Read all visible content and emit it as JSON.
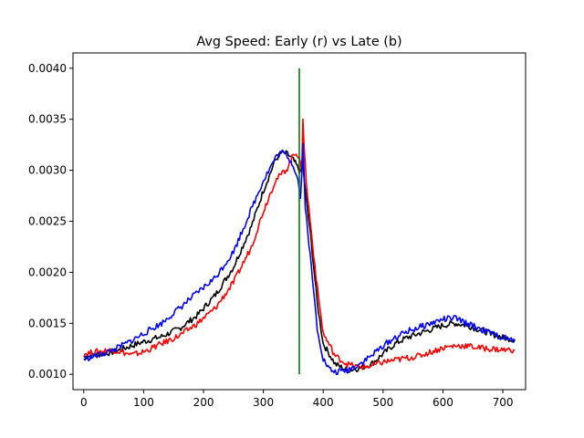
{
  "chart_data": {
    "type": "line",
    "title": "Avg Speed: Early (r) vs Late (b)",
    "xlabel": "",
    "ylabel": "",
    "xlim": [
      -18,
      738
    ],
    "ylim": [
      0.00085,
      0.00415
    ],
    "xticks": [
      0,
      100,
      200,
      300,
      400,
      500,
      600,
      700
    ],
    "yticks": [
      0.001,
      0.0015,
      0.002,
      0.0025,
      0.003,
      0.0035,
      0.004
    ],
    "ytick_labels": [
      "0.0010",
      "0.0015",
      "0.0020",
      "0.0025",
      "0.0030",
      "0.0035",
      "0.0040"
    ],
    "grid": false,
    "series": [
      {
        "color": "#000000",
        "x": [
          0,
          20,
          50,
          80,
          100,
          130,
          160,
          190,
          220,
          250,
          280,
          300,
          320,
          330,
          340,
          350,
          355,
          362,
          366,
          370,
          380,
          390,
          400,
          420,
          440,
          460,
          480,
          500,
          520,
          540,
          560,
          580,
          600,
          620,
          640,
          660,
          680,
          700,
          720
        ],
        "y": [
          0.00117,
          0.00119,
          0.00122,
          0.00128,
          0.00132,
          0.00137,
          0.00145,
          0.00158,
          0.00178,
          0.00205,
          0.00245,
          0.0028,
          0.0031,
          0.00317,
          0.00316,
          0.0031,
          0.00305,
          0.00298,
          0.00305,
          0.0028,
          0.0023,
          0.0017,
          0.0013,
          0.0011,
          0.00104,
          0.00106,
          0.0011,
          0.0012,
          0.0013,
          0.00136,
          0.0014,
          0.00144,
          0.00148,
          0.0015,
          0.00148,
          0.00144,
          0.0014,
          0.00136,
          0.00134
        ]
      },
      {
        "color": "#ff0000",
        "x": [
          0,
          20,
          50,
          80,
          100,
          130,
          160,
          190,
          220,
          250,
          280,
          300,
          320,
          340,
          350,
          355,
          360,
          364,
          366,
          368,
          372,
          380,
          390,
          400,
          420,
          440,
          460,
          480,
          500,
          520,
          540,
          560,
          580,
          600,
          620,
          640,
          660,
          680,
          700,
          720
        ],
        "y": [
          0.0012,
          0.00122,
          0.00124,
          0.00119,
          0.00122,
          0.0013,
          0.00138,
          0.0015,
          0.00165,
          0.0019,
          0.00225,
          0.0026,
          0.0029,
          0.00302,
          0.00315,
          0.00318,
          0.0031,
          0.003,
          0.00352,
          0.00325,
          0.00285,
          0.0024,
          0.00185,
          0.0014,
          0.00118,
          0.0011,
          0.00107,
          0.00108,
          0.00112,
          0.00114,
          0.00116,
          0.00118,
          0.00122,
          0.00126,
          0.00128,
          0.00128,
          0.00126,
          0.00125,
          0.00124,
          0.00124
        ]
      },
      {
        "color": "#0000ff",
        "x": [
          0,
          20,
          50,
          80,
          100,
          130,
          160,
          190,
          220,
          250,
          280,
          300,
          320,
          330,
          340,
          350,
          358,
          362,
          366,
          370,
          380,
          390,
          400,
          410,
          420,
          440,
          460,
          480,
          500,
          520,
          540,
          560,
          580,
          600,
          620,
          640,
          660,
          680,
          700,
          720
        ],
        "y": [
          0.00115,
          0.00118,
          0.00124,
          0.00133,
          0.0014,
          0.0015,
          0.00165,
          0.0018,
          0.00195,
          0.0022,
          0.00262,
          0.0029,
          0.00312,
          0.00318,
          0.00314,
          0.00305,
          0.0029,
          0.00272,
          0.00325,
          0.00265,
          0.00205,
          0.00145,
          0.00115,
          0.00105,
          0.00102,
          0.00104,
          0.0011,
          0.00118,
          0.00128,
          0.00136,
          0.00142,
          0.00146,
          0.0015,
          0.00154,
          0.00155,
          0.0015,
          0.00145,
          0.0014,
          0.00136,
          0.00133
        ]
      }
    ],
    "vline": {
      "x": 360,
      "ymin": 0.001,
      "ymax": 0.004,
      "color": "#008000"
    }
  }
}
